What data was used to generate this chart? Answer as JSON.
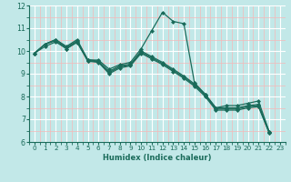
{
  "xlabel": "Humidex (Indice chaleur)",
  "bg_color": "#c2e8e8",
  "line_color": "#1a6b5a",
  "grid_major_color": "#ffffff",
  "grid_minor_color": "#f5b8b8",
  "xlim": [
    -0.5,
    23.5
  ],
  "ylim": [
    6,
    12
  ],
  "yticks": [
    6,
    7,
    8,
    9,
    10,
    11,
    12
  ],
  "xticks": [
    0,
    1,
    2,
    3,
    4,
    5,
    6,
    7,
    8,
    9,
    10,
    11,
    12,
    13,
    14,
    15,
    16,
    17,
    18,
    19,
    20,
    21,
    22,
    23
  ],
  "series1": [
    9.9,
    10.3,
    10.5,
    10.2,
    10.5,
    9.6,
    9.6,
    9.2,
    9.4,
    9.5,
    10.1,
    10.9,
    11.7,
    11.3,
    11.2,
    8.6,
    8.1,
    7.5,
    7.6,
    7.6,
    7.7,
    7.8,
    6.45,
    null
  ],
  "series2": [
    9.9,
    10.3,
    10.5,
    10.15,
    10.45,
    9.62,
    9.55,
    9.1,
    9.35,
    9.42,
    10.0,
    9.75,
    9.5,
    9.2,
    8.9,
    8.55,
    8.1,
    7.5,
    7.5,
    7.5,
    7.6,
    7.65,
    6.45,
    null
  ],
  "series3": [
    9.9,
    10.3,
    10.45,
    10.1,
    10.4,
    9.58,
    9.52,
    9.05,
    9.3,
    9.38,
    9.95,
    9.7,
    9.45,
    9.15,
    8.85,
    8.5,
    8.05,
    7.45,
    7.45,
    7.45,
    7.55,
    7.6,
    6.4,
    null
  ],
  "series4": [
    9.9,
    10.2,
    10.4,
    10.1,
    10.38,
    9.55,
    9.5,
    9.0,
    9.25,
    9.35,
    9.9,
    9.65,
    9.4,
    9.1,
    8.8,
    8.45,
    8.0,
    7.4,
    7.4,
    7.4,
    7.5,
    7.55,
    6.4,
    null
  ],
  "marker_size": 2.5,
  "lw": 0.9,
  "xlabel_fontsize": 6.0,
  "tick_fontsize": 5.2
}
